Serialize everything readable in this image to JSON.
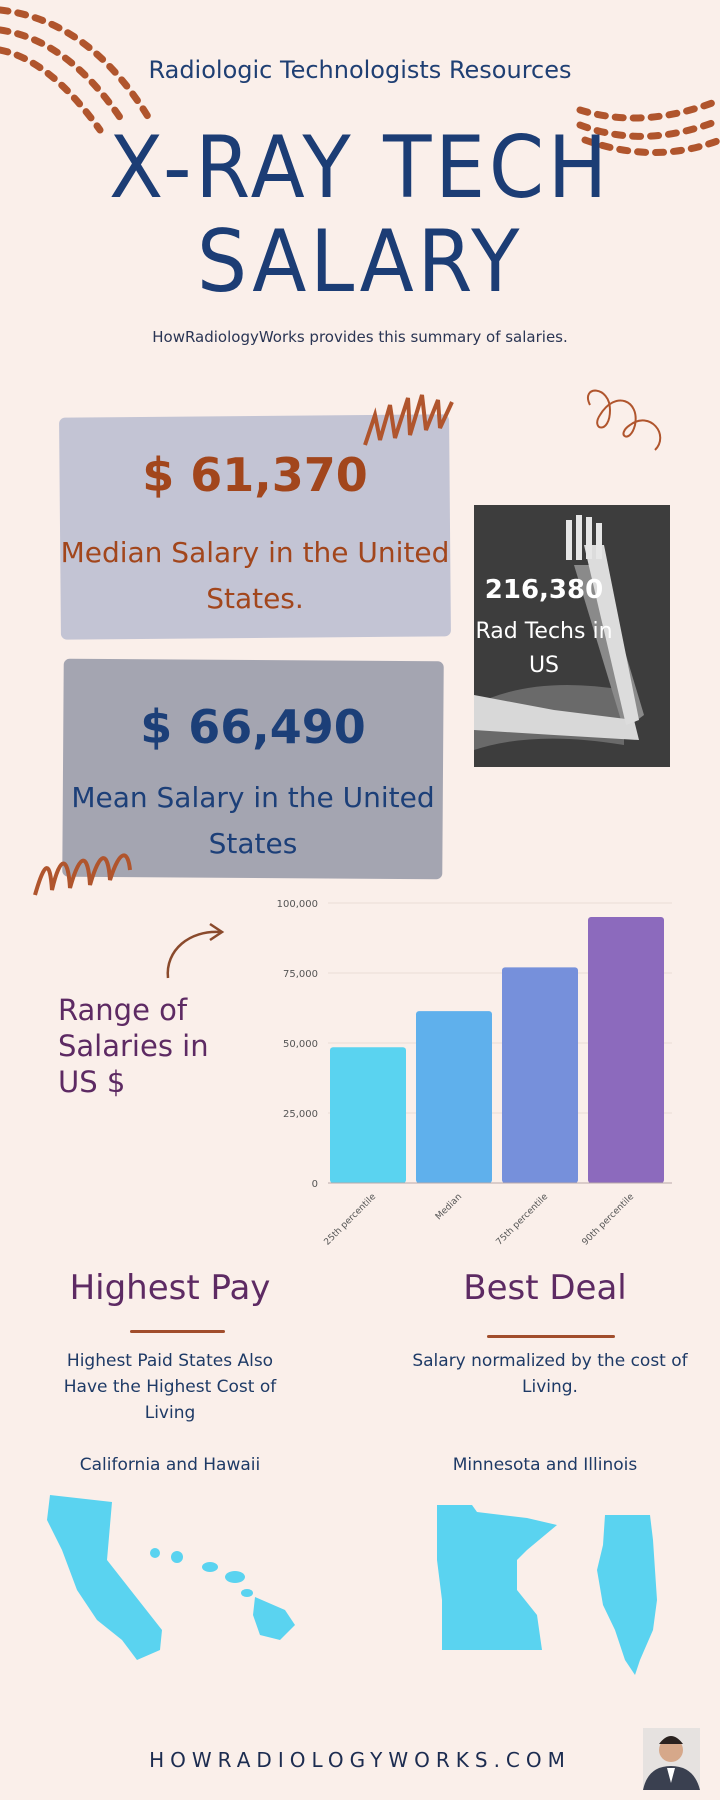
{
  "header": {
    "kicker": "Radiologic Technologists Resources",
    "title_line1": "X-RAY TECH",
    "title_line2": "SALARY",
    "tagline": "HowRadiologyWorks provides this summary of salaries."
  },
  "stats": {
    "median": {
      "value": "$ 61,370",
      "label": "Median Salary in the United States."
    },
    "mean": {
      "value": "$ 66,490",
      "label": "Mean Salary in the United States"
    },
    "techs": {
      "value": "216,380",
      "label": "Rad Techs in US"
    }
  },
  "range": {
    "label": "Range of Salaries in US $"
  },
  "chart_data": {
    "type": "bar",
    "categories": [
      "25th percentile",
      "Median",
      "75th percentile",
      "90th percentile"
    ],
    "values": [
      48500,
      61370,
      77000,
      95000
    ],
    "colors": [
      "#5ad3f0",
      "#5fb0ec",
      "#7690db",
      "#8c6abd"
    ],
    "yticks": [
      "0",
      "25,000",
      "50,000",
      "75,000",
      "100,000"
    ],
    "ylim": [
      0,
      100000
    ],
    "grid": true
  },
  "highest_pay": {
    "title": "Highest Pay",
    "desc": "Highest Paid States Also Have the Highest Cost of Living",
    "states": "California and Hawaii"
  },
  "best_deal": {
    "title": "Best Deal",
    "desc": "Salary normalized by the cost of Living.",
    "states": "Minnesota and Illinois"
  },
  "footer": {
    "site": "HOWRADIOLOGYWORKS.COM"
  },
  "colors": {
    "background": "#faefea",
    "navy": "#1c3d75",
    "rust": "#a2461c",
    "purple": "#5d2a63",
    "map": "#5ad3f0"
  }
}
